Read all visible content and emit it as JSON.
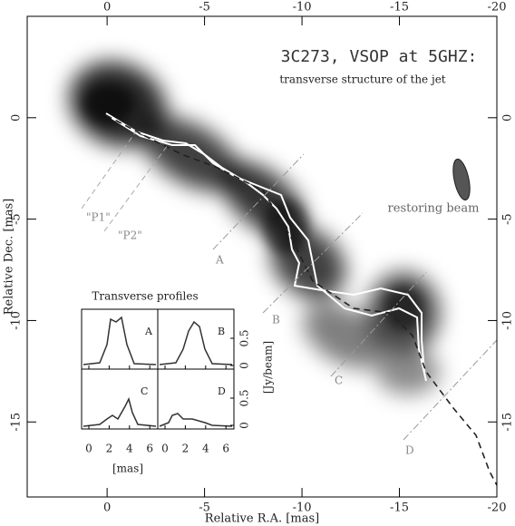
{
  "chart_data": {
    "type": "image",
    "title": "3C273,  VSOP at 5GHZ:",
    "subtitle": "transverse structure of the jet",
    "x_label": "Relative R.A. [mas]",
    "y_label": "Relative Dec. [mas]",
    "xlim": [
      4.1,
      -20
    ],
    "xticks": [
      0,
      -5,
      -10,
      -15,
      -20
    ],
    "ylim": [
      -18.7,
      5
    ],
    "yticks": [
      0,
      -5,
      -10,
      -15
    ],
    "annotations": {
      "p1": "\"P1\"",
      "p2": "\"P2\"",
      "a": "A",
      "b": "B",
      "c": "C",
      "d": "D",
      "beam": "restoring beam"
    },
    "inset": {
      "title": "Transverse profiles",
      "panels": [
        "A",
        "B",
        "C",
        "D"
      ],
      "xticks": [
        0,
        2,
        4,
        6
      ],
      "x_label": "[mas]",
      "yticks": [
        0,
        0.5
      ],
      "y_label": "[Jy/beam]"
    }
  }
}
